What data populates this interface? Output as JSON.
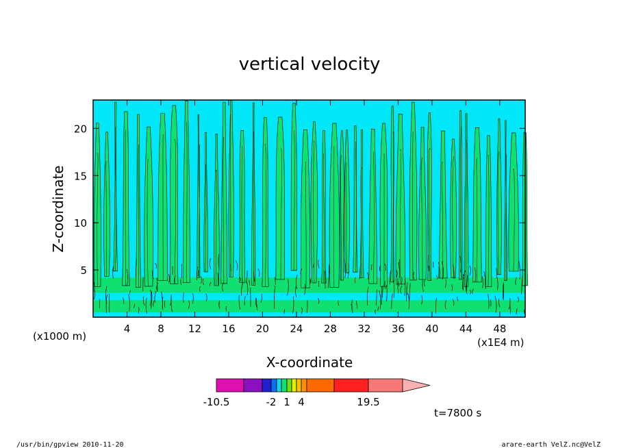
{
  "chart_data": {
    "type": "heatmap",
    "title": "vertical velocity",
    "xlabel": "X-coordinate",
    "ylabel": "Z-coordinate",
    "x_unit_left": "(x1000 m)",
    "x_unit_right": "(x1E4 m)",
    "x_ticks": [
      "4",
      "8",
      "12",
      "16",
      "20",
      "24",
      "28",
      "32",
      "36",
      "40",
      "44",
      "48"
    ],
    "x_tick_values": [
      4,
      8,
      12,
      16,
      20,
      24,
      28,
      32,
      36,
      40,
      44,
      48
    ],
    "xlim": [
      0,
      51
    ],
    "y_ticks": [
      "5",
      "10",
      "15",
      "20"
    ],
    "y_tick_values": [
      5,
      10,
      15,
      20
    ],
    "ylim": [
      0,
      23
    ],
    "colorbar": {
      "colors": [
        "#e010b0",
        "#8a10c0",
        "#2020d0",
        "#0a70f0",
        "#10d8e8",
        "#10e070",
        "#70e010",
        "#e0f000",
        "#ffc000",
        "#ff9000",
        "#ff6a00",
        "#ff2020",
        "#f87878",
        "#f8b0b0"
      ],
      "levels": [
        -10.5,
        -6,
        -3,
        -2,
        -1,
        0,
        1,
        2,
        3,
        4,
        7,
        12,
        19.5
      ],
      "labels": [
        "-10.5",
        "-2",
        "1",
        "4",
        "19.5"
      ],
      "label_values": [
        -10.5,
        -2,
        1,
        4,
        19.5
      ]
    },
    "grid": false,
    "legend": "colorbar-bottom",
    "time_label": "t=7800 s"
  },
  "footer": {
    "left": "/usr/bin/gpview   2010-11-20",
    "right": "arare-earth_VelZ.nc@VelZ"
  }
}
